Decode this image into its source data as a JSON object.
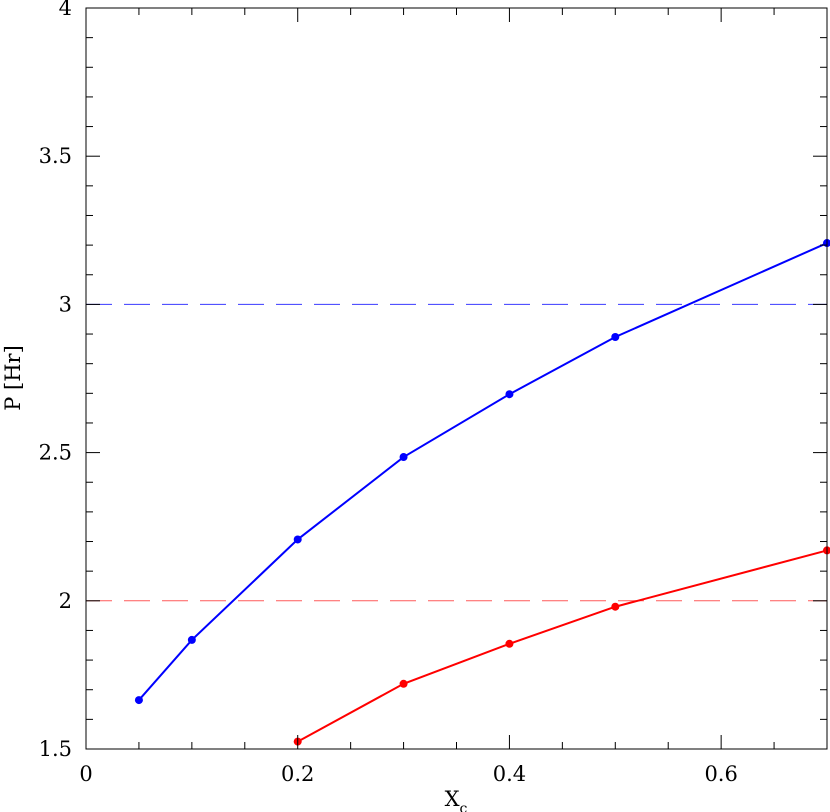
{
  "chart_data": {
    "type": "line",
    "xlabel": "X",
    "xlabel_sub": "c",
    "ylabel": "P [Hr]",
    "xlim": [
      0,
      0.7
    ],
    "ylim": [
      1.5,
      4
    ],
    "x_ticks": [
      "0",
      "0.2",
      "0.4",
      "0.6"
    ],
    "y_ticks": [
      "1.5",
      "2",
      "2.5",
      "3",
      "3.5",
      "4"
    ],
    "grid": false,
    "series": [
      {
        "color": "#0000ff",
        "x": [
          0.05,
          0.1,
          0.2,
          0.3,
          0.4,
          0.5,
          0.7
        ],
        "y": [
          1.665,
          1.868,
          2.207,
          2.485,
          2.697,
          2.89,
          3.207
        ]
      },
      {
        "color": "#ff0000",
        "x": [
          0.2,
          0.3,
          0.4,
          0.5,
          0.7
        ],
        "y": [
          1.525,
          1.72,
          1.855,
          1.98,
          2.17
        ]
      }
    ],
    "reference_lines": [
      {
        "y": 3.0,
        "color": "#3a3aff",
        "style": "dashed"
      },
      {
        "y": 2.0,
        "color": "#ff5a5a",
        "style": "dashed"
      }
    ]
  }
}
